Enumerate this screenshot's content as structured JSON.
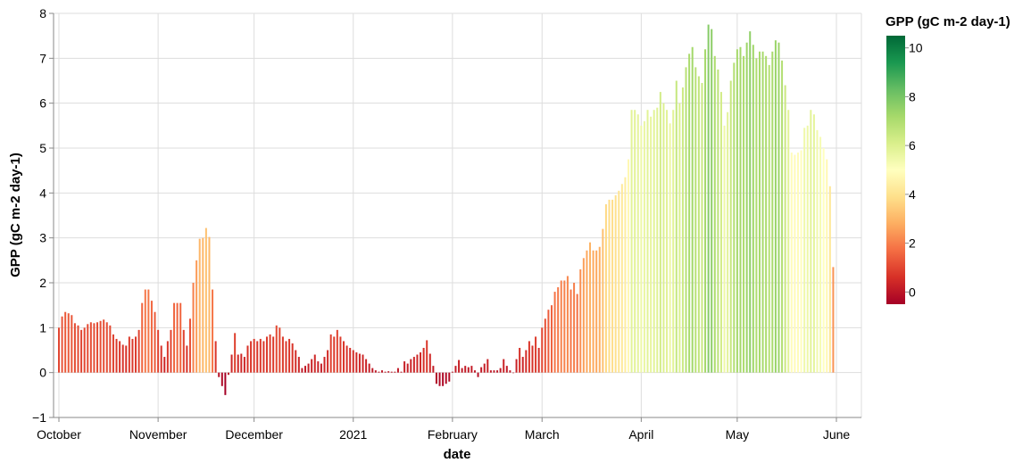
{
  "chart_data": {
    "type": "bar",
    "xlabel": "date",
    "ylabel": "GPP (gC m-2 day-1)",
    "ylim": [
      -1,
      8
    ],
    "y_ticks": [
      "−1",
      "0",
      "1",
      "2",
      "3",
      "4",
      "5",
      "6",
      "7",
      "8"
    ],
    "x_ticks": [
      {
        "label": "October",
        "date": "2020-10-01"
      },
      {
        "label": "November",
        "date": "2020-11-01"
      },
      {
        "label": "December",
        "date": "2020-12-01"
      },
      {
        "label": "2021",
        "date": "2021-01-01"
      },
      {
        "label": "February",
        "date": "2021-02-01"
      },
      {
        "label": "March",
        "date": "2021-03-01"
      },
      {
        "label": "April",
        "date": "2021-04-01"
      },
      {
        "label": "May",
        "date": "2021-05-01"
      },
      {
        "label": "June",
        "date": "2021-06-01"
      }
    ],
    "grid": true,
    "legend": {
      "title": "GPP (gC m-2 day-1)",
      "placement": "right",
      "type": "color-gradient",
      "range": [
        -0.5,
        10.5
      ],
      "ticks": [
        "0",
        "2",
        "4",
        "6",
        "8",
        "10"
      ],
      "colors": [
        "#a50026",
        "#d73027",
        "#f46d43",
        "#fdae61",
        "#fee08b",
        "#ffffbf",
        "#d9ef8b",
        "#a6d96a",
        "#66bd63",
        "#1a9850",
        "#006837"
      ]
    },
    "start_date": "2020-10-01",
    "values": [
      1.0,
      1.25,
      1.35,
      1.32,
      1.28,
      1.1,
      1.05,
      0.95,
      1.0,
      1.08,
      1.12,
      1.1,
      1.12,
      1.15,
      1.18,
      1.12,
      1.05,
      0.85,
      0.75,
      0.7,
      0.62,
      0.6,
      0.8,
      0.75,
      0.8,
      0.95,
      1.55,
      1.85,
      1.85,
      1.6,
      1.35,
      0.95,
      0.6,
      0.35,
      0.7,
      0.95,
      1.55,
      1.55,
      1.55,
      0.95,
      0.6,
      1.2,
      2.0,
      2.5,
      2.98,
      3.0,
      3.22,
      3.02,
      1.85,
      0.7,
      -0.1,
      -0.3,
      -0.5,
      -0.05,
      0.4,
      0.88,
      0.4,
      0.42,
      0.35,
      0.6,
      0.7,
      0.75,
      0.7,
      0.75,
      0.7,
      0.8,
      0.85,
      0.8,
      1.05,
      1.0,
      0.8,
      0.7,
      0.75,
      0.65,
      0.5,
      0.35,
      0.1,
      0.15,
      0.2,
      0.3,
      0.4,
      0.25,
      0.2,
      0.35,
      0.5,
      0.85,
      0.8,
      0.95,
      0.8,
      0.7,
      0.6,
      0.55,
      0.5,
      0.45,
      0.42,
      0.4,
      0.3,
      0.2,
      0.1,
      0.05,
      0.02,
      0.05,
      0.02,
      0.03,
      0.02,
      0.02,
      0.1,
      0.02,
      0.25,
      0.2,
      0.3,
      0.35,
      0.4,
      0.45,
      0.55,
      0.72,
      0.42,
      0.15,
      -0.25,
      -0.3,
      -0.3,
      -0.25,
      -0.2,
      0.02,
      0.15,
      0.28,
      0.1,
      0.15,
      0.12,
      0.15,
      0.05,
      -0.1,
      0.12,
      0.2,
      0.3,
      0.05,
      0.05,
      0.05,
      0.1,
      0.3,
      0.15,
      0.05,
      0.0,
      0.3,
      0.55,
      0.35,
      0.5,
      0.7,
      0.6,
      0.8,
      0.55,
      1.0,
      1.2,
      1.4,
      1.5,
      1.8,
      1.9,
      2.05,
      2.05,
      2.15,
      1.85,
      2.0,
      1.75,
      2.3,
      2.55,
      2.72,
      2.9,
      2.72,
      2.72,
      2.8,
      3.2,
      3.75,
      3.85,
      3.85,
      3.95,
      4.05,
      4.2,
      4.35,
      4.75,
      5.85,
      5.85,
      5.75,
      5.5,
      5.6,
      5.85,
      5.7,
      5.85,
      5.9,
      6.25,
      6.0,
      5.85,
      5.55,
      5.85,
      6.5,
      6.0,
      6.35,
      6.8,
      7.1,
      7.25,
      6.8,
      6.6,
      6.45,
      7.2,
      7.75,
      7.65,
      7.05,
      6.75,
      6.25,
      5.5,
      5.8,
      6.5,
      6.9,
      7.2,
      7.25,
      7.05,
      7.35,
      7.6,
      7.3,
      7.0,
      7.15,
      7.15,
      7.05,
      6.85,
      7.15,
      7.4,
      7.35,
      6.95,
      6.4,
      5.85,
      4.9,
      4.85,
      4.9,
      4.95,
      5.45,
      5.5,
      5.85,
      5.75,
      5.4,
      5.25,
      5.0,
      4.75,
      4.15,
      2.35
    ]
  }
}
